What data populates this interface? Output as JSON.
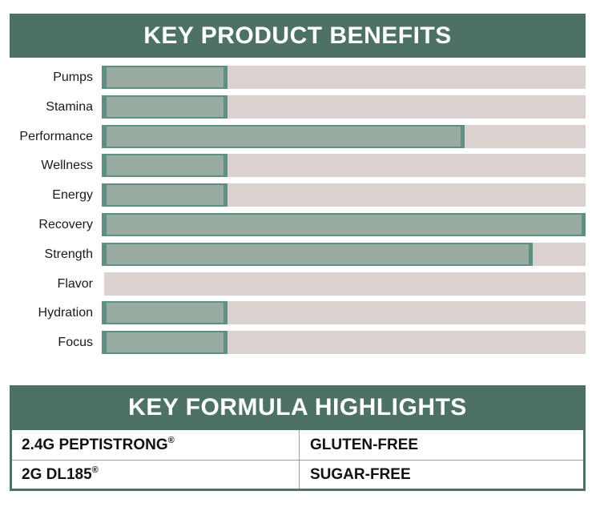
{
  "benefits": {
    "title": "KEY PRODUCT BENEFITS"
  },
  "chart_data": {
    "type": "bar",
    "orientation": "horizontal",
    "title": "KEY PRODUCT BENEFITS",
    "categories": [
      "Pumps",
      "Stamina",
      "Performance",
      "Wellness",
      "Energy",
      "Recovery",
      "Strength",
      "Flavor",
      "Hydration",
      "Focus"
    ],
    "values": [
      26,
      26,
      75,
      26,
      26,
      100,
      89,
      0,
      26,
      26
    ],
    "xlabel": "",
    "ylabel": "",
    "xlim": [
      0,
      100
    ],
    "grid": false,
    "legend": null,
    "colors": {
      "fill": "#9aaca2",
      "fill_border": "#5f8f80",
      "track": "#d9d2cf",
      "banner": "#4e7166"
    }
  },
  "formula": {
    "title": "KEY FORMULA HIGHLIGHTS",
    "rows": [
      [
        {
          "text": "2.4G PEPTISTRONG",
          "mark": "®"
        },
        {
          "text": "GLUTEN-FREE",
          "mark": ""
        }
      ],
      [
        {
          "text": "2G DL185",
          "mark": "®"
        },
        {
          "text": "SUGAR-FREE",
          "mark": ""
        }
      ]
    ]
  }
}
